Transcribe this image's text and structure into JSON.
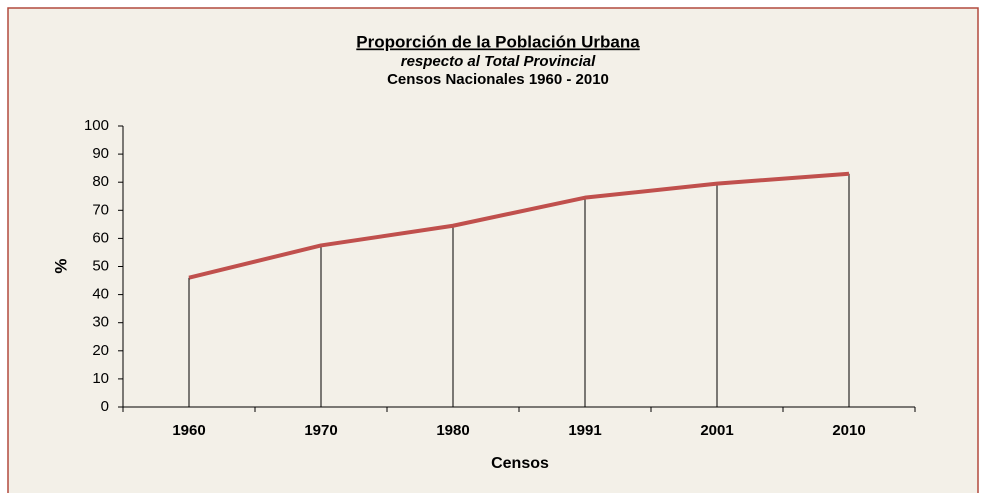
{
  "chart_data": {
    "type": "line",
    "title": "Proporción de la Población Urbana",
    "subtitle": "respecto al Total Provincial",
    "subtitle2": "Censos Nacionales 1960 - 2010",
    "x_label": "Censos",
    "y_label": "%",
    "categories": [
      "1960",
      "1970",
      "1980",
      "1991",
      "2001",
      "2010"
    ],
    "series": [
      {
        "name": "Población Urbana",
        "color": "#c0504d",
        "values": [
          46,
          57.5,
          64.5,
          74.5,
          79.5,
          83
        ]
      }
    ],
    "ylim": [
      0,
      100
    ],
    "yticks": [
      0,
      10,
      20,
      30,
      40,
      50,
      60,
      70,
      80,
      90,
      100
    ],
    "drop_lines": true
  }
}
